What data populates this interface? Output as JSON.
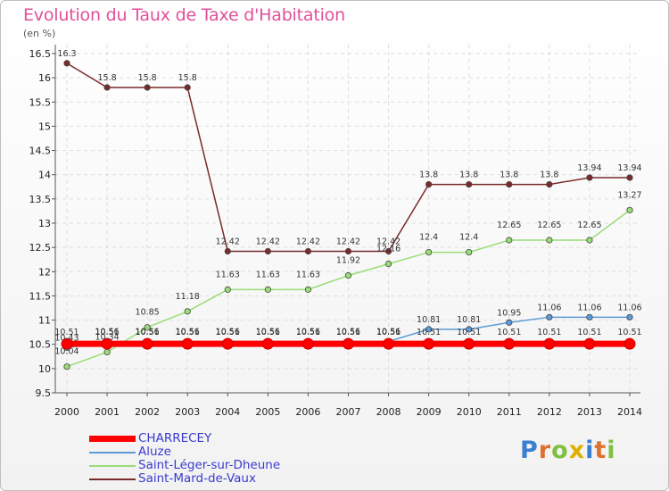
{
  "header": {
    "title": "Evolution du Taux de Taxe d'Habitation",
    "unit": "(en %)"
  },
  "logo": {
    "text": "Proxiti"
  },
  "chart_data": {
    "type": "line",
    "title": "Evolution du Taux de Taxe d'Habitation",
    "ylabel": "(en %)",
    "x": [
      "2000",
      "2001",
      "2002",
      "2003",
      "2004",
      "2005",
      "2006",
      "2007",
      "2008",
      "2009",
      "2010",
      "2011",
      "2012",
      "2013",
      "2014"
    ],
    "ylim": [
      9.5,
      16.5
    ],
    "yticks": [
      "9.5",
      "10",
      "10.5",
      "11",
      "11.5",
      "12",
      "12.5",
      "13",
      "13.5",
      "14",
      "14.5",
      "15",
      "15.5",
      "16",
      "16.5"
    ],
    "grid": true,
    "legend_position": "bottom-left",
    "series": [
      {
        "name": "CHARRECEY",
        "color": "#ff0000",
        "values": [
          10.51,
          10.51,
          10.51,
          10.51,
          10.51,
          10.51,
          10.51,
          10.51,
          10.51,
          10.51,
          10.51,
          10.51,
          10.51,
          10.51,
          10.51
        ],
        "labels": [
          "10.51",
          "10.51",
          "10.51",
          "10.51",
          "10.51",
          "10.51",
          "10.51",
          "10.51",
          "10.51",
          "10.51",
          "10.51",
          "10.51",
          "10.51",
          "10.51",
          "10.51"
        ]
      },
      {
        "name": "Aluze",
        "color": "#5b9bd5",
        "values": [
          10.43,
          10.56,
          10.56,
          10.56,
          10.56,
          10.56,
          10.56,
          10.56,
          10.56,
          10.81,
          10.81,
          10.95,
          11.06,
          11.06,
          11.06
        ],
        "labels": [
          "10.43",
          "10.56",
          "10.56",
          "10.56",
          "10.56",
          "10.56",
          "10.56",
          "10.56",
          "10.56",
          "10.81",
          "10.81",
          "10.95",
          "11.06",
          "11.06",
          "11.06"
        ]
      },
      {
        "name": "Saint-Léger-sur-Dheune",
        "color": "#99dd77",
        "values": [
          10.04,
          10.34,
          10.85,
          11.18,
          11.63,
          11.63,
          11.63,
          11.92,
          12.16,
          12.4,
          12.4,
          12.65,
          12.65,
          12.65,
          13.27
        ],
        "labels": [
          "10.04",
          "10.34",
          "10.85",
          "11.18",
          "11.63",
          "11.63",
          "11.63",
          "11.92",
          "12.16",
          "12.4",
          "12.4",
          "12.65",
          "12.65",
          "12.65",
          "13.27"
        ]
      },
      {
        "name": "Saint-Mard-de-Vaux",
        "color": "#7a2a2a",
        "values": [
          16.3,
          15.8,
          15.8,
          15.8,
          12.42,
          12.42,
          12.42,
          12.42,
          12.42,
          13.8,
          13.8,
          13.8,
          13.8,
          13.94,
          13.94
        ],
        "labels": [
          "16.3",
          "15.8",
          "15.8",
          "15.8",
          "12.42",
          "12.42",
          "12.42",
          "12.42",
          "12.42",
          "13.8",
          "13.8",
          "13.8",
          "13.8",
          "13.94",
          "13.94"
        ]
      }
    ]
  }
}
